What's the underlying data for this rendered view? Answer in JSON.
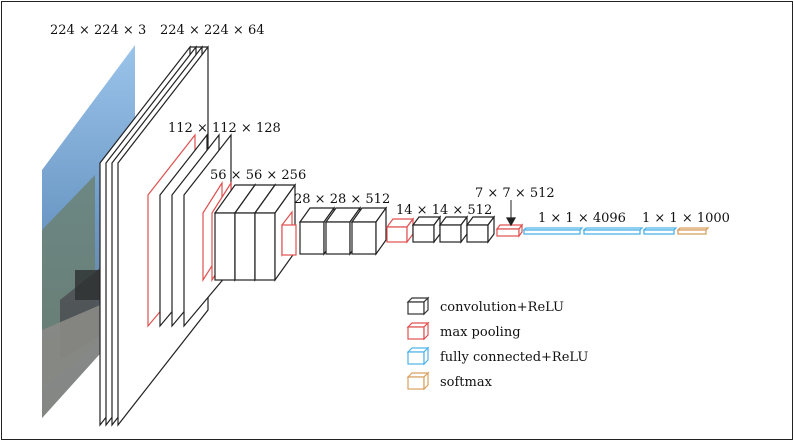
{
  "diagram": {
    "layers": [
      {
        "kind": "input",
        "dims": "224 × 224 × 3"
      },
      {
        "kind": "conv",
        "dims": "224 × 224 × 64"
      },
      {
        "kind": "conv",
        "dims": "112 × 112 × 128"
      },
      {
        "kind": "conv",
        "dims": "56 × 56 × 256"
      },
      {
        "kind": "conv",
        "dims": "28 × 28 × 512"
      },
      {
        "kind": "conv",
        "dims": "14 × 14 × 512"
      },
      {
        "kind": "pool",
        "dims": "7 × 7 × 512"
      },
      {
        "kind": "fc",
        "dims": "1 × 1 × 4096"
      },
      {
        "kind": "softmax",
        "dims": "1 × 1 × 1000"
      }
    ],
    "legend": [
      {
        "label": "convolution+ReLU",
        "color": "#333333"
      },
      {
        "label": "max pooling",
        "color": "#e05050"
      },
      {
        "label": "fully connected+ReLU",
        "color": "#4fb3e6"
      },
      {
        "label": "softmax",
        "color": "#d9a060"
      }
    ]
  }
}
